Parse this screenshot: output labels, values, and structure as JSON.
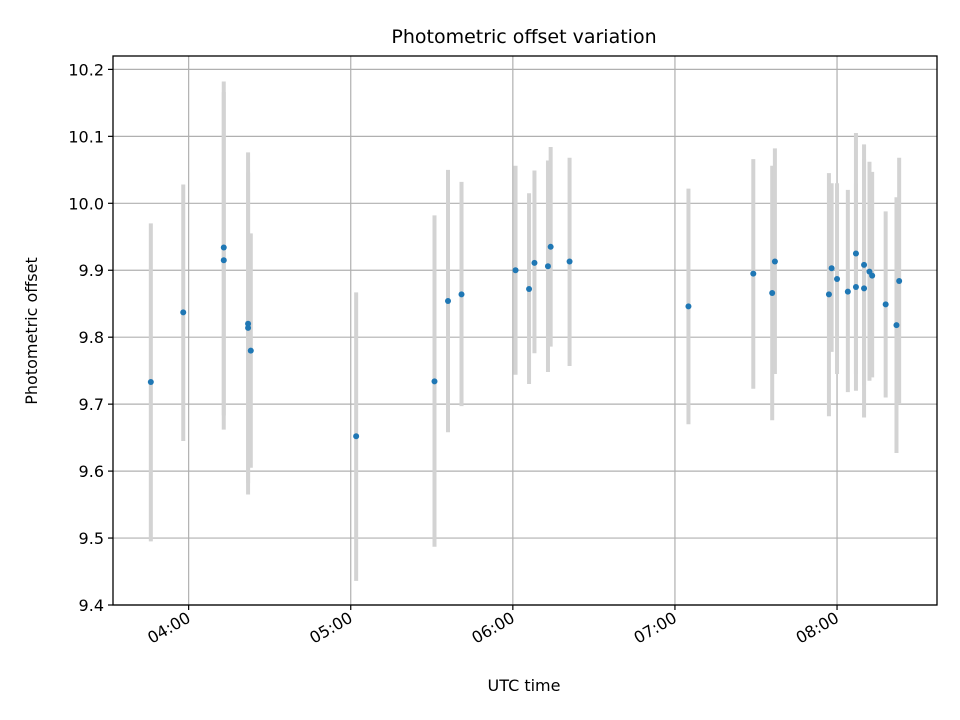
{
  "chart_data": {
    "type": "scatter",
    "title": "Photometric offset variation",
    "xlabel": "UTC time",
    "ylabel": "Photometric offset",
    "x_tick_labels": [
      "04:00",
      "05:00",
      "06:00",
      "07:00",
      "08:00"
    ],
    "y_tick_labels": [
      "9.4",
      "9.5",
      "9.6",
      "9.7",
      "9.8",
      "9.9",
      "10.0",
      "10.1",
      "10.2"
    ],
    "xlim": [
      "03:32",
      "08:37"
    ],
    "ylim": [
      9.4,
      10.22
    ],
    "grid": true,
    "colors": {
      "points": "#1f77b4",
      "errorbars": "#d3d3d3",
      "grid": "#b0b0b0",
      "axes": "#000000"
    },
    "points": [
      {
        "x": "03:46",
        "y": 9.733,
        "ylow": 9.495,
        "yhigh": 9.97
      },
      {
        "x": "03:58",
        "y": 9.837,
        "ylow": 9.645,
        "yhigh": 10.028
      },
      {
        "x": "04:13",
        "y": 9.934,
        "ylow": 9.683,
        "yhigh": 10.182
      },
      {
        "x": "04:13",
        "y": 9.915,
        "ylow": 9.662,
        "yhigh": 10.166
      },
      {
        "x": "04:22",
        "y": 9.82,
        "ylow": 9.565,
        "yhigh": 10.076
      },
      {
        "x": "04:22",
        "y": 9.814,
        "ylow": 9.582,
        "yhigh": 10.046
      },
      {
        "x": "04:23",
        "y": 9.78,
        "ylow": 9.605,
        "yhigh": 9.955
      },
      {
        "x": "05:02",
        "y": 9.652,
        "ylow": 9.436,
        "yhigh": 9.867
      },
      {
        "x": "05:31",
        "y": 9.734,
        "ylow": 9.487,
        "yhigh": 9.982
      },
      {
        "x": "05:36",
        "y": 9.854,
        "ylow": 9.658,
        "yhigh": 10.05
      },
      {
        "x": "05:41",
        "y": 9.864,
        "ylow": 9.697,
        "yhigh": 10.032
      },
      {
        "x": "06:01",
        "y": 9.9,
        "ylow": 9.744,
        "yhigh": 10.056
      },
      {
        "x": "06:06",
        "y": 9.872,
        "ylow": 9.73,
        "yhigh": 10.015
      },
      {
        "x": "06:08",
        "y": 9.911,
        "ylow": 9.776,
        "yhigh": 10.049
      },
      {
        "x": "06:13",
        "y": 9.906,
        "ylow": 9.748,
        "yhigh": 10.064
      },
      {
        "x": "06:14",
        "y": 9.935,
        "ylow": 9.786,
        "yhigh": 10.084
      },
      {
        "x": "06:21",
        "y": 9.913,
        "ylow": 9.757,
        "yhigh": 10.068
      },
      {
        "x": "07:05",
        "y": 9.846,
        "ylow": 9.67,
        "yhigh": 10.022
      },
      {
        "x": "07:29",
        "y": 9.895,
        "ylow": 9.723,
        "yhigh": 10.066
      },
      {
        "x": "07:36",
        "y": 9.866,
        "ylow": 9.676,
        "yhigh": 10.056
      },
      {
        "x": "07:37",
        "y": 9.913,
        "ylow": 9.745,
        "yhigh": 10.082
      },
      {
        "x": "07:57",
        "y": 9.864,
        "ylow": 9.682,
        "yhigh": 10.045
      },
      {
        "x": "07:58",
        "y": 9.903,
        "ylow": 9.778,
        "yhigh": 10.03
      },
      {
        "x": "08:00",
        "y": 9.887,
        "ylow": 9.745,
        "yhigh": 10.03
      },
      {
        "x": "08:04",
        "y": 9.868,
        "ylow": 9.718,
        "yhigh": 10.02
      },
      {
        "x": "08:07",
        "y": 9.925,
        "ylow": 9.745,
        "yhigh": 10.105
      },
      {
        "x": "08:07",
        "y": 9.875,
        "ylow": 9.72,
        "yhigh": 10.03
      },
      {
        "x": "08:10",
        "y": 9.873,
        "ylow": 9.68,
        "yhigh": 10.066
      },
      {
        "x": "08:10",
        "y": 9.908,
        "ylow": 9.728,
        "yhigh": 10.088
      },
      {
        "x": "08:12",
        "y": 9.898,
        "ylow": 9.735,
        "yhigh": 10.062
      },
      {
        "x": "08:13",
        "y": 9.892,
        "ylow": 9.74,
        "yhigh": 10.047
      },
      {
        "x": "08:18",
        "y": 9.849,
        "ylow": 9.71,
        "yhigh": 9.988
      },
      {
        "x": "08:22",
        "y": 9.818,
        "ylow": 9.627,
        "yhigh": 10.009
      },
      {
        "x": "08:23",
        "y": 9.884,
        "ylow": 9.7,
        "yhigh": 10.068
      }
    ]
  }
}
